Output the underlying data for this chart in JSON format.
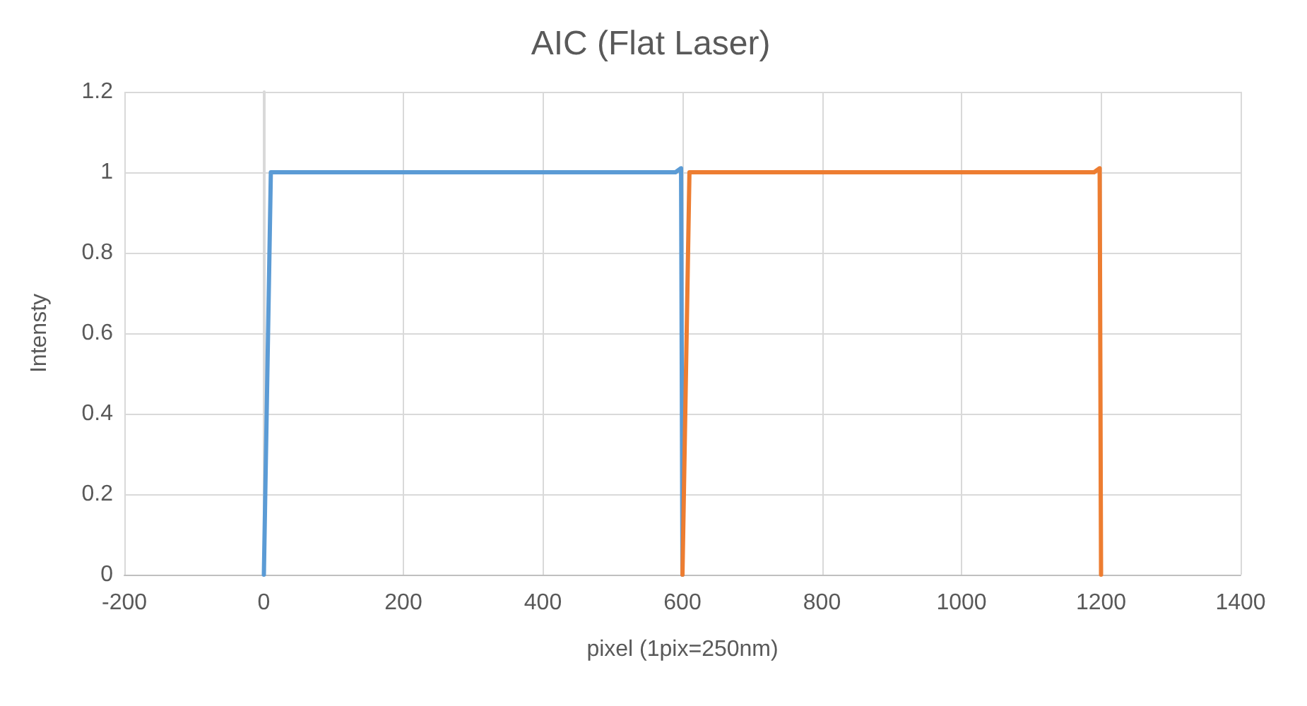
{
  "chart_data": {
    "type": "line",
    "title": "AIC (Flat Laser)",
    "xlabel": "pixel (1pix=250nm)",
    "ylabel": "Intensty",
    "series": [
      {
        "color": "#5b9bd5",
        "x": [
          0,
          10,
          590,
          598,
          600
        ],
        "values": [
          0,
          1,
          1,
          1.01,
          0
        ]
      },
      {
        "color": "#ed7d31",
        "x": [
          600,
          610,
          1190,
          1198,
          1200
        ],
        "values": [
          0,
          1,
          1,
          1.01,
          0
        ]
      }
    ],
    "xlim": [
      -200,
      1400
    ],
    "xticks": [
      -200,
      0,
      200,
      400,
      600,
      800,
      1000,
      1200,
      1400
    ],
    "ylim": [
      0,
      1.2
    ],
    "yticks": [
      0,
      0.2,
      0.4,
      0.6,
      0.8,
      1,
      1.2
    ],
    "grid": true,
    "marker": "none",
    "line_style": "solid"
  }
}
